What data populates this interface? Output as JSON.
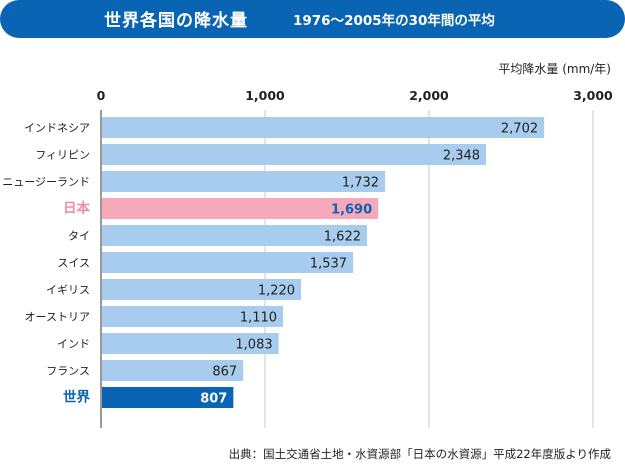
{
  "header": {
    "title": "世界各国の降水量",
    "subtitle": "1976〜2005年の30年間の平均"
  },
  "unit_label": "平均降水量 (mm/年)",
  "source": "出典：国土交通省土地・水資源部「日本の水資源」平成22年度版より作成",
  "colors": {
    "header_bg": "#0a64b4",
    "bar_default": "#a7cced",
    "bar_japan": "#f7a9bc",
    "bar_world": "#0a64b4",
    "label_japan": "#f08aa3",
    "label_world": "#0a64b4",
    "value_japan": "#0a64b4",
    "value_world": "#ffffff"
  },
  "chart_data": {
    "type": "bar",
    "orientation": "horizontal",
    "title": "世界各国の降水量",
    "subtitle": "1976〜2005年の30年間の平均",
    "xlabel": "平均降水量 (mm/年)",
    "ylabel": "",
    "xlim": [
      0,
      3000
    ],
    "xticks": [
      0,
      1000,
      2000,
      3000
    ],
    "xtick_labels": [
      "0",
      "1,000",
      "2,000",
      "3,000"
    ],
    "grid": true,
    "categories": [
      "インドネシア",
      "フィリピン",
      "ニュージーランド",
      "日本",
      "タイ",
      "スイス",
      "イギリス",
      "オーストリア",
      "インド",
      "フランス",
      "世界"
    ],
    "values": [
      2702,
      2348,
      1732,
      1690,
      1622,
      1537,
      1220,
      1110,
      1083,
      867,
      807
    ],
    "value_labels": [
      "2,702",
      "2,348",
      "1,732",
      "1,690",
      "1,622",
      "1,537",
      "1,220",
      "1,110",
      "1,083",
      "867",
      "807"
    ],
    "highlight": {
      "日本": "japan",
      "世界": "world"
    }
  }
}
